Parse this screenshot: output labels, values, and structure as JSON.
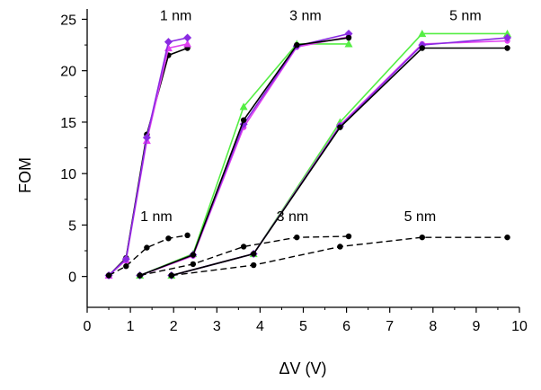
{
  "chart_data": {
    "type": "line",
    "title": "",
    "xlabel": "ΔV (V)",
    "ylabel": "FOM",
    "xlim": [
      0,
      10
    ],
    "ylim": [
      -3,
      26
    ],
    "xticks": [
      0,
      1,
      2,
      3,
      4,
      5,
      6,
      7,
      8,
      9,
      10
    ],
    "yticks": [
      0,
      5,
      10,
      15,
      20,
      25
    ],
    "grid": false,
    "legend": "none",
    "colors": {
      "black": "#000000",
      "magenta": "#e040f0",
      "purple": "#8a2be2",
      "green": "#55ee44"
    },
    "annotations": [
      {
        "text": "1 nm",
        "x": 2.05,
        "y": 24.9
      },
      {
        "text": "3 nm",
        "x": 5.05,
        "y": 24.9
      },
      {
        "text": "5 nm",
        "x": 8.75,
        "y": 24.9
      },
      {
        "text": "1 nm",
        "x": 1.6,
        "y": 5.4
      },
      {
        "text": "3 nm",
        "x": 4.75,
        "y": 5.4
      },
      {
        "text": "5 nm",
        "x": 7.7,
        "y": 5.4
      }
    ],
    "series": [
      {
        "color": "black",
        "dash": false,
        "marker": "circle",
        "x": [
          0.5,
          0.9,
          1.38,
          1.88,
          2.32
        ],
        "y": [
          0.1,
          1.8,
          13.8,
          21.5,
          22.2
        ]
      },
      {
        "color": "magenta",
        "dash": false,
        "marker": "triangle",
        "x": [
          0.5,
          0.9,
          1.38,
          1.88,
          2.32
        ],
        "y": [
          0.1,
          1.6,
          13.2,
          22.2,
          22.6
        ]
      },
      {
        "color": "purple",
        "dash": false,
        "marker": "diamond",
        "x": [
          0.5,
          0.9,
          1.38,
          1.88,
          2.32
        ],
        "y": [
          0.1,
          1.7,
          13.5,
          22.8,
          23.2
        ]
      },
      {
        "color": "black",
        "dash": true,
        "marker": "circle",
        "x": [
          0.5,
          0.9,
          1.38,
          1.88,
          2.32
        ],
        "y": [
          0.1,
          1.0,
          2.8,
          3.7,
          4.0
        ]
      },
      {
        "color": "green",
        "dash": false,
        "marker": "triangle",
        "x": [
          1.22,
          2.45,
          3.62,
          4.85,
          6.05
        ],
        "y": [
          0.1,
          2.2,
          16.5,
          22.6,
          22.6
        ]
      },
      {
        "color": "magenta",
        "dash": false,
        "marker": "circle",
        "x": [
          1.22,
          2.45,
          3.62,
          4.85,
          6.05
        ],
        "y": [
          0.1,
          2.0,
          14.5,
          22.3,
          23.3
        ]
      },
      {
        "color": "purple",
        "dash": false,
        "marker": "diamond",
        "x": [
          1.22,
          2.45,
          3.62,
          4.85,
          6.05
        ],
        "y": [
          0.1,
          2.1,
          14.8,
          22.4,
          23.6
        ]
      },
      {
        "color": "black",
        "dash": false,
        "marker": "circle",
        "x": [
          1.22,
          2.45,
          3.62,
          4.85,
          6.05
        ],
        "y": [
          0.1,
          2.1,
          15.2,
          22.5,
          23.2
        ]
      },
      {
        "color": "black",
        "dash": true,
        "marker": "circle",
        "x": [
          1.22,
          2.45,
          3.62,
          4.85,
          6.05
        ],
        "y": [
          0.1,
          1.2,
          2.9,
          3.8,
          3.9
        ]
      },
      {
        "color": "green",
        "dash": false,
        "marker": "triangle",
        "x": [
          1.95,
          3.85,
          5.85,
          7.75,
          9.72
        ],
        "y": [
          0.1,
          2.2,
          15.0,
          23.6,
          23.6
        ]
      },
      {
        "color": "magenta",
        "dash": false,
        "marker": "circle",
        "x": [
          1.95,
          3.85,
          5.85,
          7.75,
          9.72
        ],
        "y": [
          0.1,
          2.2,
          14.7,
          22.6,
          22.9
        ]
      },
      {
        "color": "purple",
        "dash": false,
        "marker": "diamond",
        "x": [
          1.95,
          3.85,
          5.85,
          7.75,
          9.72
        ],
        "y": [
          0.1,
          2.2,
          14.6,
          22.5,
          23.2
        ]
      },
      {
        "color": "black",
        "dash": false,
        "marker": "circle",
        "x": [
          1.95,
          3.85,
          5.85,
          7.75,
          9.72
        ],
        "y": [
          0.1,
          2.2,
          14.5,
          22.2,
          22.2
        ]
      },
      {
        "color": "black",
        "dash": true,
        "marker": "circle",
        "x": [
          1.95,
          3.85,
          5.85,
          7.75,
          9.72
        ],
        "y": [
          0.1,
          1.1,
          2.9,
          3.8,
          3.8
        ]
      }
    ]
  }
}
